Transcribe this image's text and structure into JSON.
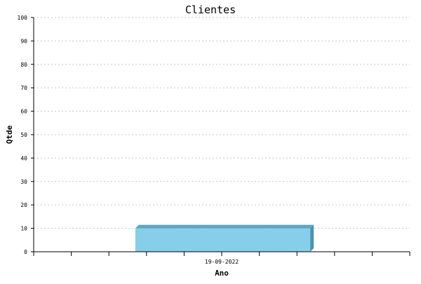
{
  "chart_data": {
    "type": "bar",
    "title": "Clientes",
    "xlabel": "Ano",
    "ylabel": "Qtde",
    "categories": [
      "19-09-2022"
    ],
    "values": [
      10
    ],
    "ylim": [
      0,
      100
    ],
    "yticks": [
      0,
      10,
      20,
      30,
      40,
      50,
      60,
      70,
      80,
      90,
      100
    ],
    "grid": true,
    "bar_style": "3d",
    "colors": {
      "bar_front": "#87ceeb",
      "bar_top": "#5ba7c2",
      "bar_side": "#4b92ab",
      "grid": "#c8c8c8",
      "axis": "#000000"
    }
  }
}
